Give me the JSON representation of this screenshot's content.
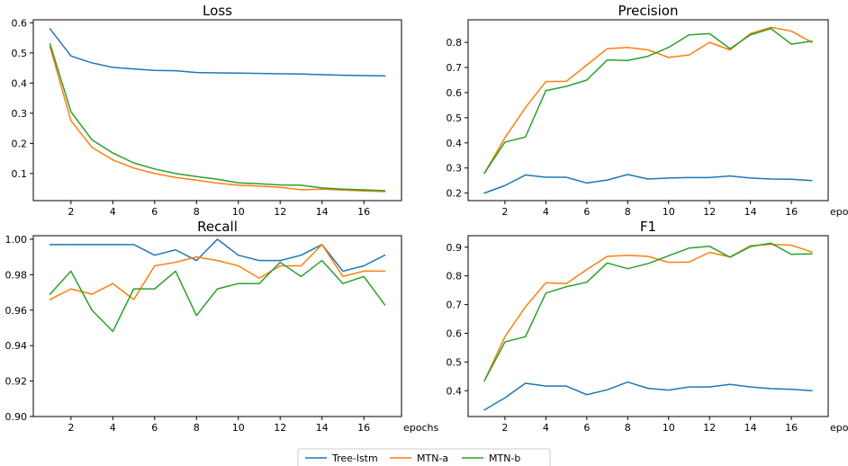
{
  "chart_data": [
    {
      "type": "line",
      "title": "Loss",
      "xlabel": "",
      "ylabel": "",
      "x": [
        1,
        2,
        3,
        4,
        5,
        6,
        7,
        8,
        9,
        10,
        11,
        12,
        13,
        14,
        15,
        16,
        17
      ],
      "xlim": [
        0.2,
        17.8
      ],
      "ylim": [
        0.01,
        0.61
      ],
      "xticks": [
        2,
        4,
        6,
        8,
        10,
        12,
        14,
        16
      ],
      "yticks": [
        0.1,
        0.2,
        0.3,
        0.4,
        0.5,
        0.6
      ],
      "ytick_labels": [
        "0.1",
        "0.2",
        "0.3",
        "0.4",
        "0.5",
        "0.6"
      ],
      "series": [
        {
          "name": "Tree-lstm",
          "color": "#1f77b4",
          "values": [
            0.58,
            0.49,
            0.467,
            0.452,
            0.447,
            0.442,
            0.441,
            0.435,
            0.434,
            0.433,
            0.432,
            0.431,
            0.43,
            0.428,
            0.426,
            0.425,
            0.424
          ]
        },
        {
          "name": "MTN-a",
          "color": "#ff7f0e",
          "values": [
            0.52,
            0.275,
            0.187,
            0.145,
            0.118,
            0.1,
            0.087,
            0.078,
            0.068,
            0.061,
            0.058,
            0.054,
            0.046,
            0.048,
            0.045,
            0.042,
            0.04
          ]
        },
        {
          "name": "MTN-b",
          "color": "#2ca02c",
          "values": [
            0.53,
            0.305,
            0.212,
            0.168,
            0.135,
            0.115,
            0.1,
            0.09,
            0.081,
            0.069,
            0.066,
            0.062,
            0.061,
            0.052,
            0.048,
            0.046,
            0.043
          ]
        }
      ]
    },
    {
      "type": "line",
      "title": "Precision",
      "xlabel": "epochs",
      "ylabel": "",
      "x": [
        1,
        2,
        3,
        4,
        5,
        6,
        7,
        8,
        9,
        10,
        11,
        12,
        13,
        14,
        15,
        16,
        17
      ],
      "xlim": [
        0.2,
        17.8
      ],
      "ylim": [
        0.17,
        0.89
      ],
      "xticks": [
        2,
        4,
        6,
        8,
        10,
        12,
        14,
        16
      ],
      "yticks": [
        0.2,
        0.3,
        0.4,
        0.5,
        0.6,
        0.7,
        0.8
      ],
      "ytick_labels": [
        "0.2",
        "0.3",
        "0.4",
        "0.5",
        "0.6",
        "0.7",
        "0.8"
      ],
      "series": [
        {
          "name": "Tree-lstm",
          "color": "#1f77b4",
          "values": [
            0.2,
            0.23,
            0.272,
            0.263,
            0.263,
            0.24,
            0.252,
            0.274,
            0.256,
            0.26,
            0.262,
            0.262,
            0.268,
            0.26,
            0.256,
            0.255,
            0.25
          ]
        },
        {
          "name": "MTN-a",
          "color": "#ff7f0e",
          "values": [
            0.28,
            0.42,
            0.54,
            0.644,
            0.645,
            0.71,
            0.775,
            0.78,
            0.77,
            0.74,
            0.75,
            0.8,
            0.77,
            0.835,
            0.86,
            0.845,
            0.8
          ]
        },
        {
          "name": "MTN-b",
          "color": "#2ca02c",
          "values": [
            0.28,
            0.403,
            0.423,
            0.608,
            0.625,
            0.65,
            0.73,
            0.728,
            0.745,
            0.78,
            0.83,
            0.835,
            0.775,
            0.83,
            0.855,
            0.793,
            0.805
          ]
        }
      ]
    },
    {
      "type": "line",
      "title": "Recall",
      "xlabel": "epochs",
      "ylabel": "",
      "x": [
        1,
        2,
        3,
        4,
        5,
        6,
        7,
        8,
        9,
        10,
        11,
        12,
        13,
        14,
        15,
        16,
        17
      ],
      "xlim": [
        0.2,
        17.8
      ],
      "ylim": [
        0.9,
        1.002
      ],
      "xticks": [
        2,
        4,
        6,
        8,
        10,
        12,
        14,
        16
      ],
      "yticks": [
        0.9,
        0.92,
        0.94,
        0.96,
        0.98,
        1.0
      ],
      "ytick_labels": [
        "0.90",
        "0.92",
        "0.94",
        "0.96",
        "0.98",
        "1.00"
      ],
      "series": [
        {
          "name": "Tree-lstm",
          "color": "#1f77b4",
          "values": [
            0.997,
            0.997,
            0.997,
            0.997,
            0.997,
            0.991,
            0.994,
            0.988,
            1.0,
            0.991,
            0.988,
            0.988,
            0.991,
            0.997,
            0.982,
            0.985,
            0.991
          ]
        },
        {
          "name": "MTN-a",
          "color": "#ff7f0e",
          "values": [
            0.966,
            0.972,
            0.969,
            0.975,
            0.966,
            0.985,
            0.987,
            0.99,
            0.988,
            0.985,
            0.978,
            0.985,
            0.985,
            0.997,
            0.979,
            0.982,
            0.982
          ]
        },
        {
          "name": "MTN-b",
          "color": "#2ca02c",
          "values": [
            0.969,
            0.982,
            0.96,
            0.948,
            0.972,
            0.972,
            0.982,
            0.957,
            0.972,
            0.975,
            0.975,
            0.987,
            0.979,
            0.988,
            0.975,
            0.979,
            0.963
          ]
        }
      ]
    },
    {
      "type": "line",
      "title": "F1",
      "xlabel": "epochs",
      "ylabel": "",
      "x": [
        1,
        2,
        3,
        4,
        5,
        6,
        7,
        8,
        9,
        10,
        11,
        12,
        13,
        14,
        15,
        16,
        17
      ],
      "xlim": [
        0.2,
        17.8
      ],
      "ylim": [
        0.31,
        0.94
      ],
      "xticks": [
        2,
        4,
        6,
        8,
        10,
        12,
        14,
        16
      ],
      "yticks": [
        0.4,
        0.5,
        0.6,
        0.7,
        0.8,
        0.9
      ],
      "ytick_labels": [
        "0.4",
        "0.5",
        "0.6",
        "0.7",
        "0.8",
        "0.9"
      ],
      "series": [
        {
          "name": "Tree-lstm",
          "color": "#1f77b4",
          "values": [
            0.333,
            0.375,
            0.426,
            0.416,
            0.416,
            0.386,
            0.403,
            0.43,
            0.408,
            0.402,
            0.413,
            0.413,
            0.422,
            0.413,
            0.407,
            0.405,
            0.4
          ]
        },
        {
          "name": "MTN-a",
          "color": "#ff7f0e",
          "values": [
            0.435,
            0.588,
            0.692,
            0.776,
            0.773,
            0.822,
            0.868,
            0.872,
            0.868,
            0.847,
            0.848,
            0.882,
            0.866,
            0.905,
            0.91,
            0.907,
            0.883
          ]
        },
        {
          "name": "MTN-b",
          "color": "#2ca02c",
          "values": [
            0.435,
            0.57,
            0.588,
            0.74,
            0.762,
            0.778,
            0.845,
            0.825,
            0.843,
            0.87,
            0.897,
            0.903,
            0.865,
            0.902,
            0.914,
            0.875,
            0.877
          ]
        }
      ]
    }
  ],
  "legend": {
    "placement": "bottom-center",
    "items": [
      {
        "label": "Tree-lstm",
        "color": "#1f77b4"
      },
      {
        "label": "MTN-a",
        "color": "#ff7f0e"
      },
      {
        "label": "MTN-b",
        "color": "#2ca02c"
      }
    ]
  }
}
